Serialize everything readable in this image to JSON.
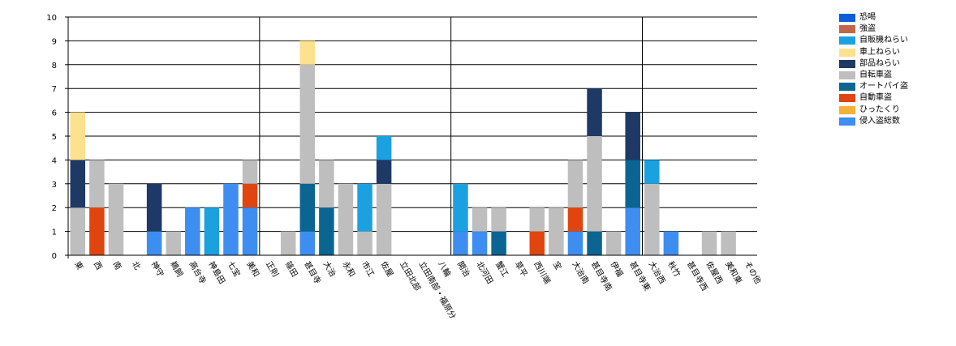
{
  "chart_data": {
    "type": "bar",
    "stacked": true,
    "title": "",
    "xlabel": "",
    "ylabel": "",
    "ylim": [
      0,
      10
    ],
    "yticks": [
      0,
      1,
      2,
      3,
      4,
      5,
      6,
      7,
      8,
      9,
      10
    ],
    "grid": true,
    "legend_position": "top-right",
    "categories": [
      "東",
      "西",
      "南",
      "北",
      "神守",
      "鵜飼",
      "高台寺",
      "神島田",
      "七宝",
      "美和",
      "正則",
      "篠田",
      "甚目寺",
      "大治",
      "永和",
      "市江",
      "佐屋",
      "立田北部",
      "立田南部・福原分",
      "八輪",
      "開治",
      "北河田",
      "蟹江",
      "草平",
      "西川端",
      "宝",
      "大治南",
      "甚目寺南",
      "伊福",
      "甚目寺東",
      "大治西",
      "秋竹",
      "甚目寺西",
      "佐屋西",
      "美和東",
      "その他"
    ],
    "series": [
      {
        "name": "恐喝",
        "color": "#0b5ed7",
        "values": [
          0,
          0,
          0,
          0,
          0,
          0,
          0,
          0,
          0,
          0,
          0,
          0,
          0,
          0,
          0,
          0,
          0,
          0,
          0,
          0,
          0,
          0,
          0,
          0,
          0,
          0,
          0,
          0,
          0,
          0,
          0,
          0,
          0,
          0,
          0,
          0
        ]
      },
      {
        "name": "強盗",
        "color": "#c0674a",
        "values": [
          0,
          0,
          0,
          0,
          0,
          0,
          0,
          0,
          0,
          0,
          0,
          0,
          0,
          0,
          0,
          0,
          0,
          0,
          0,
          0,
          0,
          0,
          0,
          0,
          0,
          0,
          0,
          0,
          0,
          0,
          0,
          0,
          0,
          0,
          0,
          0
        ]
      },
      {
        "name": "侵入盗総数",
        "color": "#3d8ef0",
        "values": [
          0,
          0,
          0,
          0,
          1,
          0,
          2,
          0,
          3,
          2,
          0,
          0,
          1,
          0,
          0,
          0,
          0,
          0,
          0,
          0,
          1,
          1,
          0,
          0,
          0,
          0,
          1,
          0,
          0,
          2,
          0,
          1,
          0,
          0,
          0,
          0
        ]
      },
      {
        "name": "ひったくり",
        "color": "#f6b03c",
        "values": [
          0,
          0,
          0,
          0,
          0,
          0,
          0,
          0,
          0,
          0,
          0,
          0,
          0,
          0,
          0,
          0,
          0,
          0,
          0,
          0,
          0,
          0,
          0,
          0,
          0,
          0,
          0,
          0,
          0,
          0,
          0,
          0,
          0,
          0,
          0,
          0
        ]
      },
      {
        "name": "自動車盗",
        "color": "#e1450f",
        "values": [
          0,
          2,
          0,
          0,
          0,
          0,
          0,
          0,
          0,
          1,
          0,
          0,
          0,
          0,
          0,
          0,
          0,
          0,
          0,
          0,
          0,
          0,
          0,
          0,
          1,
          0,
          1,
          0,
          0,
          0,
          0,
          0,
          0,
          0,
          0,
          0
        ]
      },
      {
        "name": "オートバイ盗",
        "color": "#0b6592",
        "values": [
          0,
          0,
          0,
          0,
          0,
          0,
          0,
          0,
          0,
          0,
          0,
          0,
          2,
          2,
          0,
          0,
          0,
          0,
          0,
          0,
          0,
          0,
          1,
          0,
          0,
          0,
          0,
          1,
          0,
          2,
          0,
          0,
          0,
          0,
          0,
          0
        ]
      },
      {
        "name": "自転車盗",
        "color": "#bebebe",
        "values": [
          2,
          2,
          3,
          0,
          0,
          1,
          0,
          0,
          0,
          1,
          0,
          1,
          5,
          2,
          3,
          1,
          3,
          0,
          0,
          0,
          0,
          1,
          1,
          0,
          1,
          2,
          2,
          4,
          1,
          0,
          3,
          0,
          0,
          1,
          1,
          0
        ]
      },
      {
        "name": "部品ねらい",
        "color": "#1e3966",
        "values": [
          2,
          0,
          0,
          0,
          2,
          0,
          0,
          0,
          0,
          0,
          0,
          0,
          0,
          0,
          0,
          0,
          1,
          0,
          0,
          0,
          0,
          0,
          0,
          0,
          0,
          0,
          0,
          2,
          0,
          2,
          0,
          0,
          0,
          0,
          0,
          0
        ]
      },
      {
        "name": "車上ねらい",
        "color": "#fde18e",
        "values": [
          2,
          0,
          0,
          0,
          0,
          0,
          0,
          0,
          0,
          0,
          0,
          0,
          1,
          0,
          0,
          0,
          0,
          0,
          0,
          0,
          0,
          0,
          0,
          0,
          0,
          0,
          0,
          0,
          0,
          0,
          0,
          0,
          0,
          0,
          0,
          0
        ]
      },
      {
        "name": "自販機ねらい",
        "color": "#1ca1e0",
        "values": [
          0,
          0,
          0,
          0,
          0,
          0,
          0,
          2,
          0,
          0,
          0,
          0,
          0,
          0,
          0,
          2,
          1,
          0,
          0,
          0,
          2,
          0,
          0,
          0,
          0,
          0,
          0,
          0,
          0,
          0,
          1,
          0,
          0,
          0,
          0,
          0
        ]
      }
    ],
    "legend_order": [
      "恐喝",
      "強盗",
      "自販機ねらい",
      "車上ねらい",
      "部品ねらい",
      "自転車盗",
      "オートバイ盗",
      "自動車盗",
      "ひったくり",
      "侵入盗総数"
    ]
  }
}
